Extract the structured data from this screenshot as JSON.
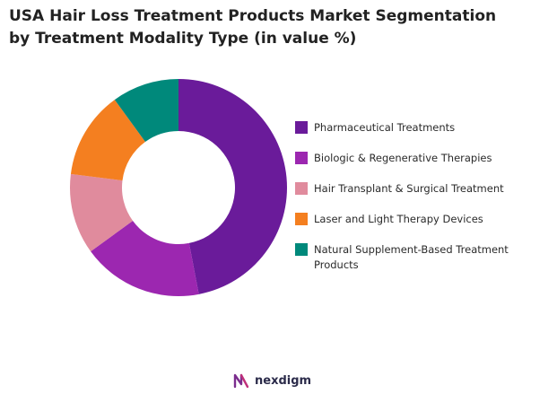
{
  "title": "USA Hair Loss Treatment Products Market Segmentation\n by Treatment Modality Type (in value %)",
  "chart_data": {
    "type": "pie",
    "donut": true,
    "title": "USA Hair Loss Treatment Products Market Segmentation by Treatment Modality Type (in value %)",
    "categories": [
      "Pharmaceutical Treatments",
      "Biologic & Regenerative Therapies",
      "Hair Transplant & Surgical Treatment",
      "Laser and Light Therapy Devices",
      "Natural Supplement-Based Treatment Products"
    ],
    "values": [
      47,
      18,
      12,
      13,
      10
    ],
    "colors": [
      "#6a1b9a",
      "#9c27b0",
      "#e08b9d",
      "#f47f20",
      "#00897b"
    ],
    "legend_position": "right"
  },
  "logo": {
    "text": "nexdigm",
    "icon": "nexdigm-logo-icon"
  }
}
